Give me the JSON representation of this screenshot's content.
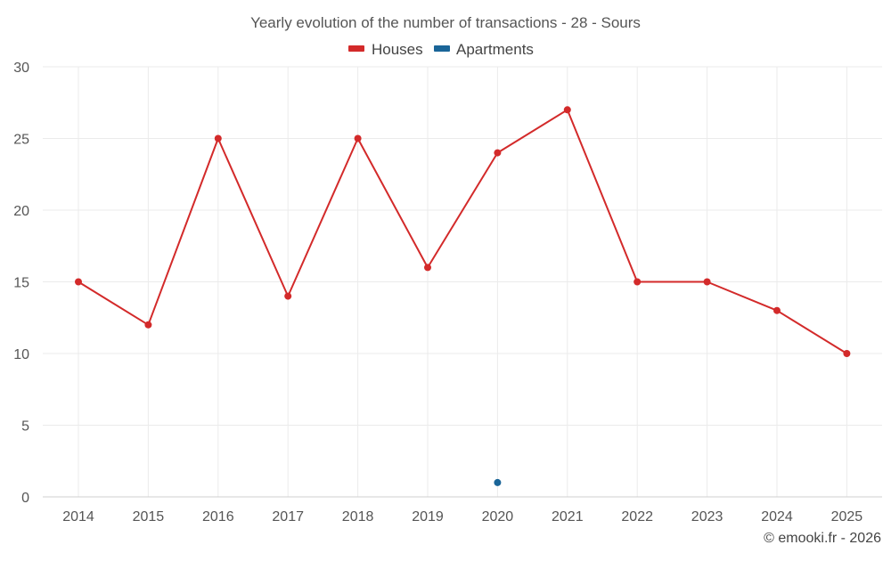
{
  "chart_data": {
    "type": "line",
    "title": "Yearly evolution of the number of transactions - 28 - Sours",
    "xlabel": "",
    "ylabel": "",
    "categories": [
      "2014",
      "2015",
      "2016",
      "2017",
      "2018",
      "2019",
      "2020",
      "2021",
      "2022",
      "2023",
      "2024",
      "2025"
    ],
    "ylim": [
      0,
      30
    ],
    "yticks": [
      "0",
      "5",
      "10",
      "15",
      "20",
      "25",
      "30"
    ],
    "grid": true,
    "legend_position": "top-center",
    "series": [
      {
        "name": "Houses",
        "color": "#d32a2a",
        "values": [
          15,
          12,
          25,
          14,
          25,
          16,
          24,
          27,
          15,
          15,
          13,
          10
        ]
      },
      {
        "name": "Apartments",
        "color": "#1a6598",
        "values": [
          null,
          null,
          null,
          null,
          null,
          null,
          1,
          null,
          null,
          null,
          null,
          null
        ]
      }
    ]
  },
  "credit": "© emooki.fr - 2026"
}
